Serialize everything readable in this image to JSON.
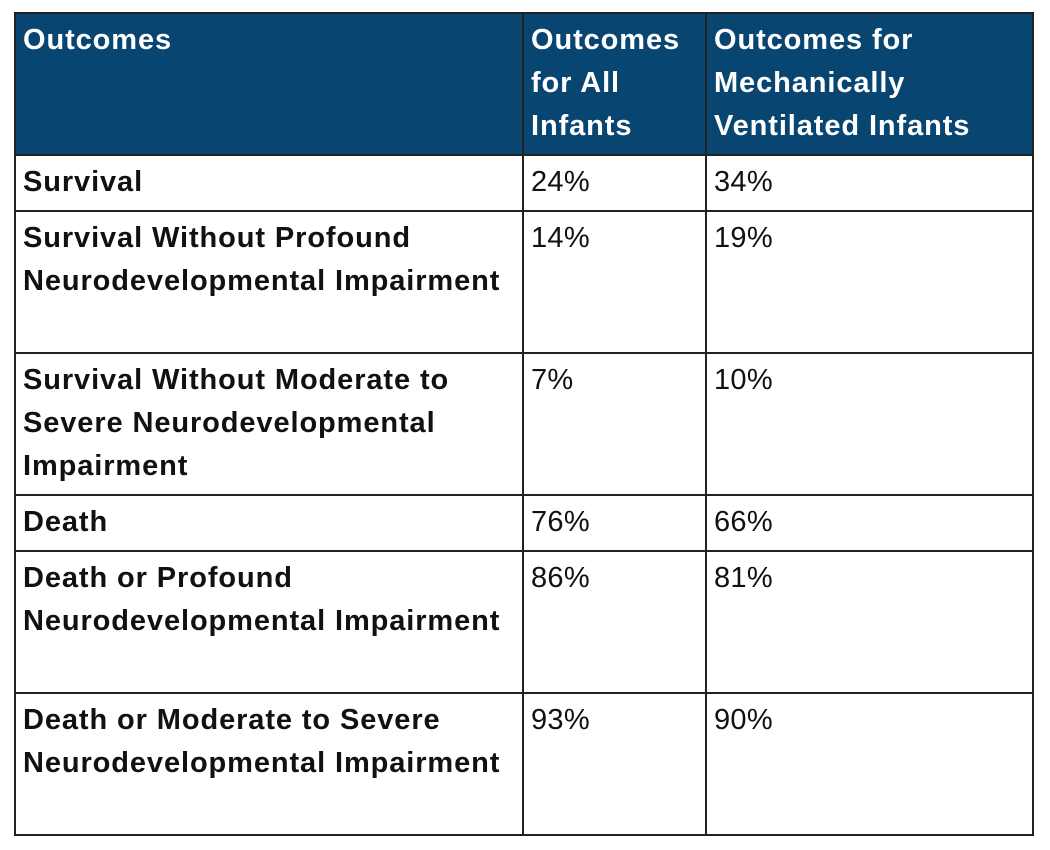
{
  "table": {
    "header": [
      "Outcomes",
      "Outcomes for All Infants",
      "Outcomes for Mechanically Ventilated Infants"
    ],
    "rows": [
      [
        "Survival",
        "24%",
        "34%"
      ],
      [
        "Survival Without Profound Neurodevelopmental Impairment",
        "14%",
        "19%"
      ],
      [
        "Survival Without Moderate to Severe Neurodevelopmental Impairment",
        "7%",
        "10%"
      ],
      [
        "Death",
        "76%",
        "66%"
      ],
      [
        "Death or Profound Neurodevelopmental Impairment",
        "86%",
        "81%"
      ],
      [
        "Death or Moderate to Severe Neurodevelopmental Impairment",
        "93%",
        "90%"
      ]
    ]
  }
}
